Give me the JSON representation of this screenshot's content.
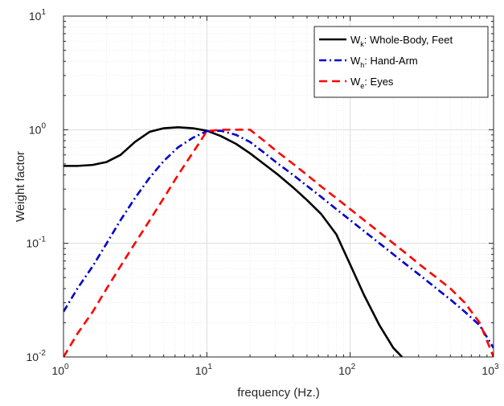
{
  "chart_data": {
    "type": "line",
    "xlabel": "frequency (Hz.)",
    "ylabel": "Weight factor",
    "xscale": "log",
    "yscale": "log",
    "xlim": [
      1,
      1000
    ],
    "ylim": [
      0.01,
      10
    ],
    "grid": "on (major and minor)",
    "legend_location": "top-right",
    "x_ticks": [
      {
        "base": "10",
        "exp": "0"
      },
      {
        "base": "10",
        "exp": "1"
      },
      {
        "base": "10",
        "exp": "2"
      },
      {
        "base": "10",
        "exp": "3"
      }
    ],
    "y_ticks": [
      {
        "base": "10",
        "exp": "-2"
      },
      {
        "base": "10",
        "exp": "-1"
      },
      {
        "base": "10",
        "exp": "0"
      },
      {
        "base": "10",
        "exp": "1"
      }
    ],
    "series": [
      {
        "name": "W",
        "subscript": "k",
        "label_suffix": ": Whole-Body, Feet",
        "color": "#000000",
        "style": "solid",
        "x": [
          1,
          1.25,
          1.6,
          2,
          2.5,
          3.15,
          4,
          5,
          6.3,
          8,
          10,
          12.5,
          16,
          20,
          25,
          31.5,
          40,
          50,
          63,
          80,
          100,
          125,
          160,
          200,
          230
        ],
        "y": [
          0.48,
          0.48,
          0.49,
          0.52,
          0.6,
          0.78,
          0.96,
          1.03,
          1.05,
          1.03,
          0.98,
          0.88,
          0.75,
          0.62,
          0.5,
          0.4,
          0.31,
          0.24,
          0.18,
          0.12,
          0.065,
          0.035,
          0.019,
          0.012,
          0.01
        ]
      },
      {
        "name": "W",
        "subscript": "h",
        "label_suffix": ": Hand-Arm",
        "color": "#0000cc",
        "style": "dashdot",
        "x": [
          1,
          1.25,
          1.6,
          2,
          2.5,
          3.15,
          4,
          5,
          6.3,
          8,
          10,
          12.5,
          16,
          20,
          25,
          31.5,
          40,
          50,
          63,
          80,
          100,
          125,
          160,
          200,
          250,
          315,
          400,
          500,
          630,
          800,
          1000
        ],
        "y": [
          0.025,
          0.04,
          0.063,
          0.1,
          0.16,
          0.25,
          0.38,
          0.53,
          0.7,
          0.85,
          0.97,
          0.98,
          0.9,
          0.78,
          0.63,
          0.5,
          0.4,
          0.32,
          0.255,
          0.2,
          0.16,
          0.128,
          0.1,
          0.08,
          0.064,
          0.051,
          0.04,
          0.032,
          0.025,
          0.019,
          0.012
        ]
      },
      {
        "name": "W",
        "subscript": "e",
        "label_suffix": ": Eyes",
        "color": "#ff0000",
        "style": "dashed",
        "x": [
          1,
          1.25,
          1.6,
          2,
          2.5,
          3.15,
          4,
          5,
          6.3,
          8,
          10,
          12.5,
          16,
          20,
          25,
          31.5,
          40,
          50,
          63,
          80,
          100,
          125,
          160,
          200,
          250,
          315,
          400,
          500,
          630,
          800,
          1000
        ],
        "y": [
          0.01,
          0.016,
          0.025,
          0.04,
          0.063,
          0.1,
          0.16,
          0.25,
          0.4,
          0.63,
          0.97,
          1.0,
          1.0,
          1.0,
          0.8,
          0.63,
          0.5,
          0.4,
          0.315,
          0.25,
          0.2,
          0.16,
          0.125,
          0.1,
          0.08,
          0.063,
          0.05,
          0.04,
          0.03,
          0.02,
          0.01
        ]
      }
    ]
  }
}
